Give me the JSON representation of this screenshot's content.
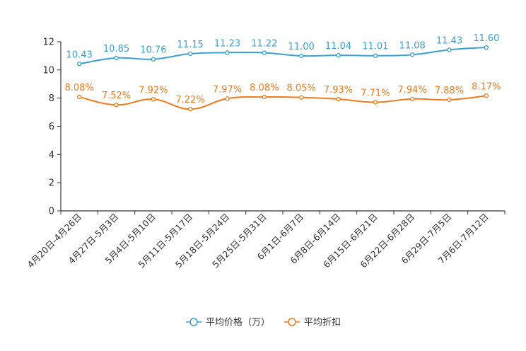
{
  "chart_data": {
    "type": "line",
    "title": "",
    "xlabel": "",
    "ylabel": "",
    "ylim": [
      0,
      12
    ],
    "yticks": [
      "0",
      "2",
      "4",
      "6",
      "8",
      "10",
      "12"
    ],
    "categories": [
      "4月20日-4月26日",
      "4月27日-5月3日",
      "5月4日-5月10日",
      "5月11日-5月17日",
      "5月18日-5月24日",
      "5月25日-5月31日",
      "6月1日-6月7日",
      "6月8日-6月14日",
      "6月15日-6月21日",
      "6月22日-6月28日",
      "6月29日-7月5日",
      "7月6日-7月12日"
    ],
    "series": [
      {
        "name": "平均价格（万）",
        "color": "#3a9fd1",
        "values": [
          10.43,
          10.85,
          10.76,
          11.15,
          11.23,
          11.22,
          11.0,
          11.04,
          11.01,
          11.08,
          11.43,
          11.6
        ],
        "labels": [
          "10.43",
          "10.85",
          "10.76",
          "11.15",
          "11.23",
          "11.22",
          "11.00",
          "11.04",
          "11.01",
          "11.08",
          "11.43",
          "11.60"
        ]
      },
      {
        "name": "平均折扣",
        "color": "#f07a1c",
        "values": [
          8.08,
          7.52,
          7.92,
          7.22,
          7.97,
          8.08,
          8.05,
          7.93,
          7.71,
          7.94,
          7.88,
          8.17
        ],
        "labels": [
          "8.08%",
          "7.52%",
          "7.92%",
          "7.22%",
          "7.97%",
          "8.08%",
          "8.05%",
          "7.93%",
          "7.71%",
          "7.94%",
          "7.88%",
          "8.17%"
        ]
      }
    ],
    "legend_position": "bottom-center"
  }
}
